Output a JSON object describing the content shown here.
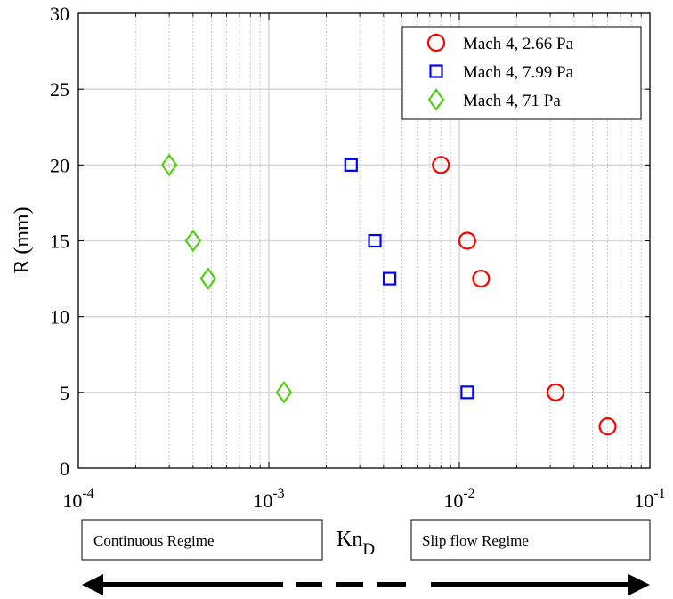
{
  "chart_data": {
    "type": "scatter",
    "x_scale": "log",
    "xlim": [
      0.0001,
      0.1
    ],
    "ylim": [
      0,
      30
    ],
    "grid": true,
    "legend_position": "top-right",
    "ylabel": "R (mm)",
    "xlabel": {
      "base": "Kn",
      "sub": "D"
    },
    "x_ticks": [
      {
        "base": "10",
        "exp": "-4",
        "value": 0.0001
      },
      {
        "base": "10",
        "exp": "-3",
        "value": 0.001
      },
      {
        "base": "10",
        "exp": "-2",
        "value": 0.01
      },
      {
        "base": "10",
        "exp": "-1",
        "value": 0.1
      }
    ],
    "y_ticks": [
      "0",
      "5",
      "10",
      "15",
      "20",
      "25",
      "30"
    ],
    "series": [
      {
        "name": "Mach 4, 2.66 Pa",
        "marker": "circle",
        "color": "#ff0000",
        "points": [
          [
            0.008,
            20
          ],
          [
            0.011,
            15
          ],
          [
            0.013,
            12.5
          ],
          [
            0.032,
            5
          ],
          [
            0.06,
            2.75
          ]
        ]
      },
      {
        "name": "Mach 4, 7.99 Pa",
        "marker": "square",
        "color": "#0000ff",
        "points": [
          [
            0.0027,
            20
          ],
          [
            0.0036,
            15
          ],
          [
            0.0043,
            12.5
          ],
          [
            0.011,
            5
          ]
        ]
      },
      {
        "name": "Mach 4, 71 Pa",
        "marker": "diamond",
        "color": "#55cc11",
        "points": [
          [
            0.0003,
            20
          ],
          [
            0.0004,
            15
          ],
          [
            0.00048,
            12.5
          ],
          [
            0.0012,
            5
          ]
        ]
      }
    ]
  },
  "regimes": {
    "left": "Continuous Regime",
    "right": "Slip flow Regime"
  }
}
